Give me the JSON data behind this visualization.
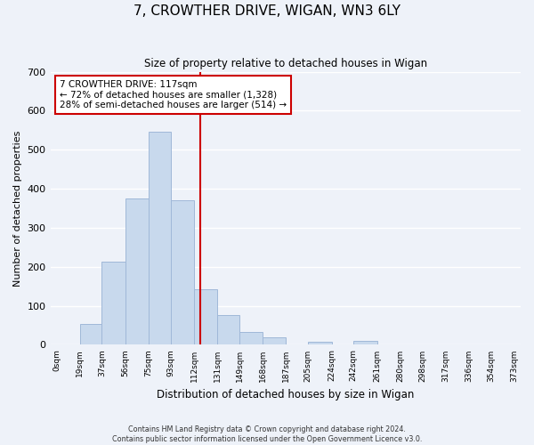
{
  "title": "7, CROWTHER DRIVE, WIGAN, WN3 6LY",
  "subtitle": "Size of property relative to detached houses in Wigan",
  "xlabel": "Distribution of detached houses by size in Wigan",
  "ylabel": "Number of detached properties",
  "bin_edges": [
    0,
    19,
    37,
    56,
    75,
    93,
    112,
    131,
    149,
    168,
    187,
    205,
    224,
    242,
    261,
    280,
    298,
    317,
    336,
    354,
    373
  ],
  "bin_labels": [
    "0sqm",
    "19sqm",
    "37sqm",
    "56sqm",
    "75sqm",
    "93sqm",
    "112sqm",
    "131sqm",
    "149sqm",
    "168sqm",
    "187sqm",
    "205sqm",
    "224sqm",
    "242sqm",
    "261sqm",
    "280sqm",
    "298sqm",
    "317sqm",
    "336sqm",
    "354sqm",
    "373sqm"
  ],
  "bar_heights": [
    0,
    53,
    213,
    376,
    547,
    370,
    142,
    76,
    33,
    19,
    0,
    8,
    0,
    9,
    0,
    0,
    0,
    0,
    0,
    0
  ],
  "bar_color": "#c8d9ed",
  "bar_edge_color": "#a0b8d8",
  "property_line_value": 117,
  "property_line_color": "#cc0000",
  "annotation_title": "7 CROWTHER DRIVE: 117sqm",
  "annotation_line1": "← 72% of detached houses are smaller (1,328)",
  "annotation_line2": "28% of semi-detached houses are larger (514) →",
  "annotation_box_color": "#ffffff",
  "annotation_box_edge_color": "#cc0000",
  "ylim": [
    0,
    700
  ],
  "yticks": [
    0,
    100,
    200,
    300,
    400,
    500,
    600,
    700
  ],
  "background_color": "#eef2f9",
  "grid_color": "#ffffff",
  "footer_line1": "Contains HM Land Registry data © Crown copyright and database right 2024.",
  "footer_line2": "Contains public sector information licensed under the Open Government Licence v3.0."
}
